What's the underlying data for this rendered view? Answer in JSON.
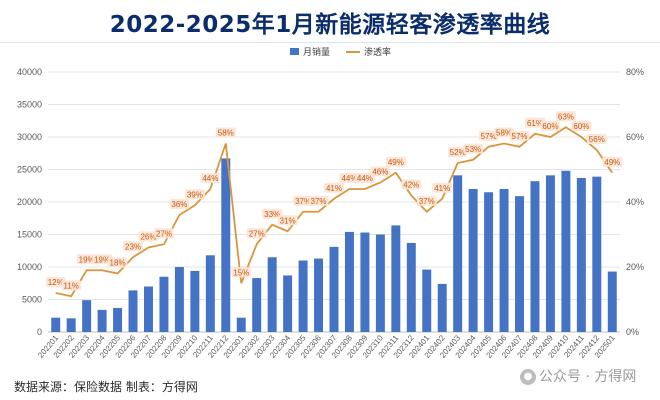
{
  "header": {
    "title": "2022-2025年1月新能源轻客渗透率曲线"
  },
  "footer": {
    "source_text": "数据来源：保险数据 制表：方得网"
  },
  "watermark": {
    "text": "公众号 · 方得网",
    "icon": "wechat-icon"
  },
  "colors": {
    "bar": "#4472c4",
    "line": "#d9963c",
    "label_bg": "#fbe5d6",
    "label_text": "#c55a11"
  },
  "chart_data": {
    "type": "bar",
    "title": "2022-2025年1月新能源轻客渗透率曲线",
    "categories": [
      "202201",
      "202202",
      "202203",
      "202204",
      "202205",
      "202206",
      "202207",
      "202208",
      "202209",
      "202210",
      "202211",
      "202212",
      "202301",
      "202302",
      "202303",
      "202304",
      "202305",
      "202306",
      "202307",
      "202308",
      "202309",
      "202310",
      "202311",
      "202312",
      "202401",
      "202402",
      "202403",
      "202404",
      "202405",
      "202406",
      "202407",
      "202408",
      "202409",
      "202410",
      "202411",
      "202412",
      "202501"
    ],
    "series": [
      {
        "name": "月销量",
        "type": "bar",
        "axis": "left",
        "values": [
          2200,
          2100,
          4900,
          3400,
          3700,
          6400,
          7000,
          8500,
          10000,
          9400,
          11800,
          26700,
          2200,
          8300,
          11500,
          8700,
          11000,
          11300,
          13100,
          15400,
          15300,
          15000,
          16400,
          13700,
          9600,
          7400,
          24100,
          22000,
          21500,
          22000,
          20900,
          23200,
          24100,
          24800,
          23700,
          23900,
          9300
        ]
      },
      {
        "name": "渗透率",
        "type": "line",
        "axis": "right",
        "values": [
          12,
          11,
          19,
          19,
          18,
          23,
          26,
          27,
          36,
          39,
          44,
          58,
          15,
          27,
          33,
          31,
          37,
          37,
          41,
          44,
          44,
          46,
          49,
          42,
          37,
          41,
          52,
          53,
          57,
          58,
          57,
          61,
          60,
          63,
          60,
          56,
          49
        ]
      }
    ],
    "line_labels": [
      "12%",
      "11%",
      "19%",
      "19%",
      "18%",
      "23%",
      "26%",
      "27%",
      "36%",
      "39%",
      "44%",
      "58%",
      "15%",
      "27%",
      "33%",
      "31%",
      "37%",
      "37%",
      "41%",
      "44%",
      "44%",
      "46%",
      "49%",
      "42%",
      "37%",
      "41%",
      "52%",
      "53%",
      "57%",
      "58%",
      "57%",
      "61%",
      "60%",
      "63%",
      "60%",
      "56%",
      "49%"
    ],
    "y_left": {
      "min": 0,
      "max": 40000,
      "ticks": [
        "0",
        "5000",
        "10000",
        "15000",
        "20000",
        "25000",
        "30000",
        "35000",
        "40000"
      ]
    },
    "y_right": {
      "min": 0,
      "max": 80,
      "ticks": [
        "0%",
        "20%",
        "40%",
        "60%",
        "80%"
      ]
    },
    "legend": {
      "placement": "top-center",
      "items": [
        "月销量",
        "渗透率"
      ]
    },
    "grid": true
  }
}
